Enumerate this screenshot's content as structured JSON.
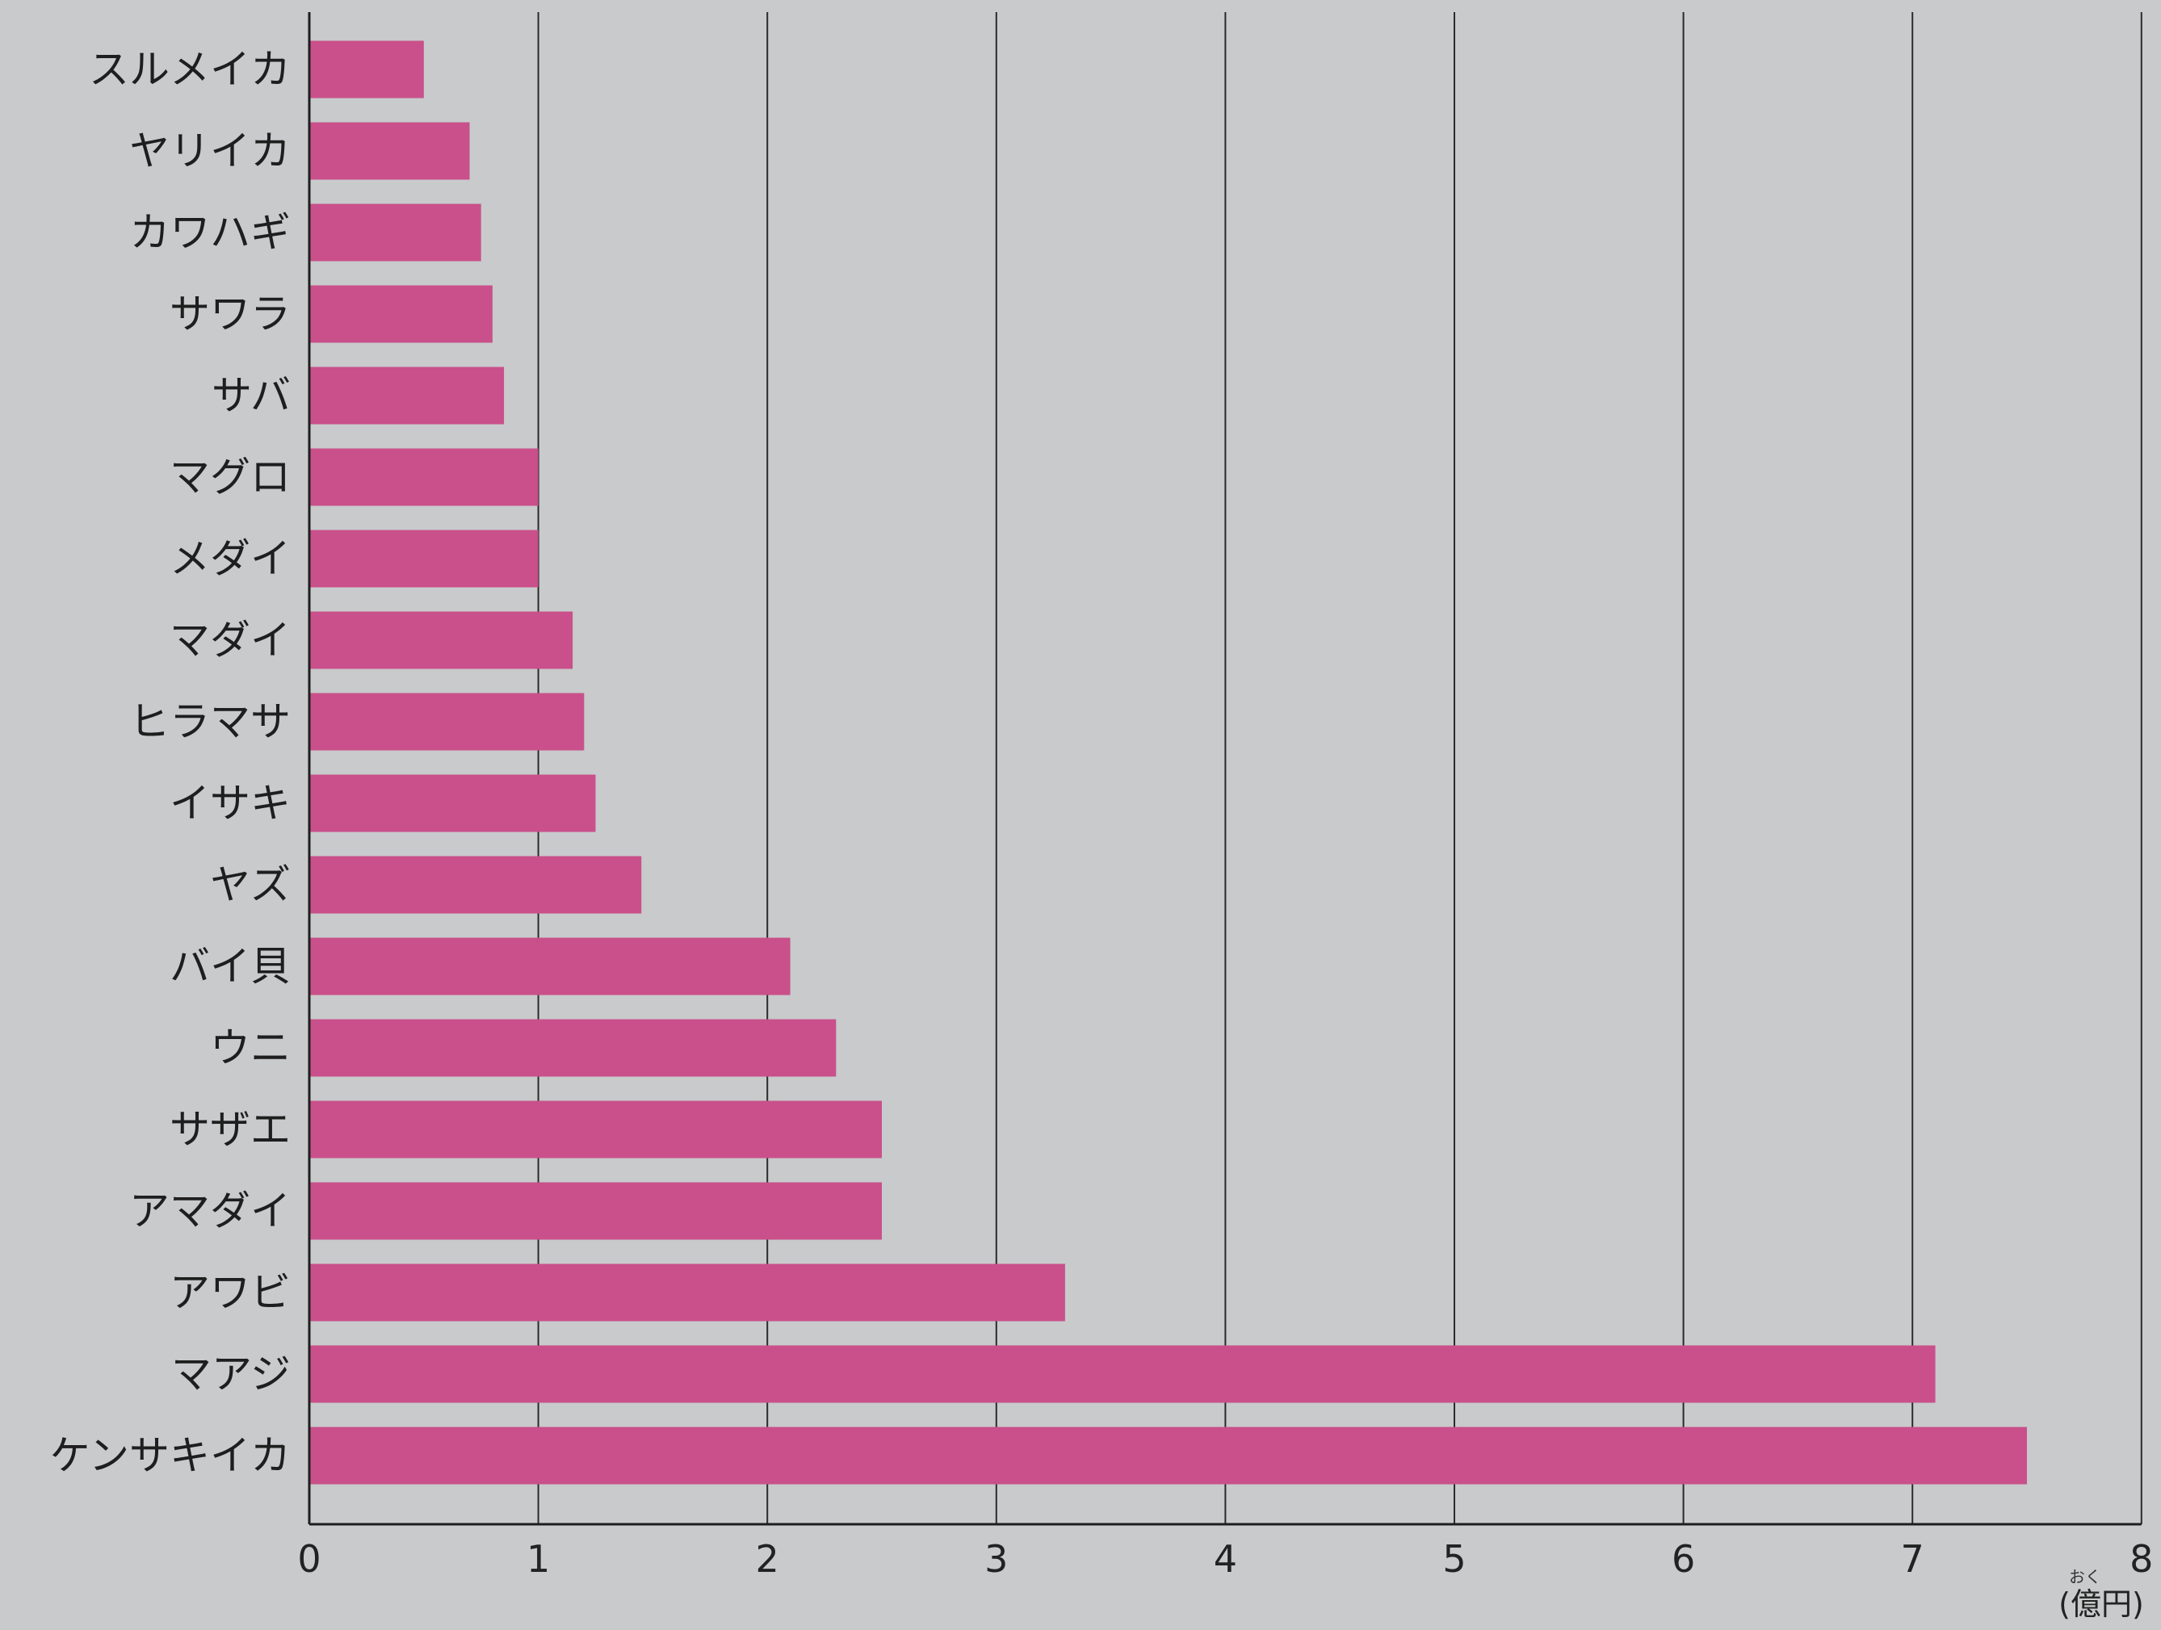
{
  "chart_data": {
    "type": "bar",
    "orientation": "horizontal",
    "categories": [
      "スルメイカ",
      "ヤリイカ",
      "カワハギ",
      "サワラ",
      "サバ",
      "マグロ",
      "メダイ",
      "マダイ",
      "ヒラマサ",
      "イサキ",
      "ヤズ",
      "バイ貝",
      "ウニ",
      "サザエ",
      "アマダイ",
      "アワビ",
      "マアジ",
      "ケンサキイカ"
    ],
    "values": [
      0.5,
      0.7,
      0.75,
      0.8,
      0.85,
      1.0,
      1.0,
      1.15,
      1.2,
      1.25,
      1.45,
      2.1,
      2.3,
      2.5,
      2.5,
      3.3,
      7.1,
      7.5
    ],
    "xlim": [
      0,
      8
    ],
    "xticks": [
      "0",
      "1",
      "2",
      "3",
      "4",
      "5",
      "6",
      "7",
      "8"
    ],
    "unit_label": "(億円)",
    "unit_ruby": "おく",
    "grid": true,
    "bar_color": "#c9508a"
  }
}
